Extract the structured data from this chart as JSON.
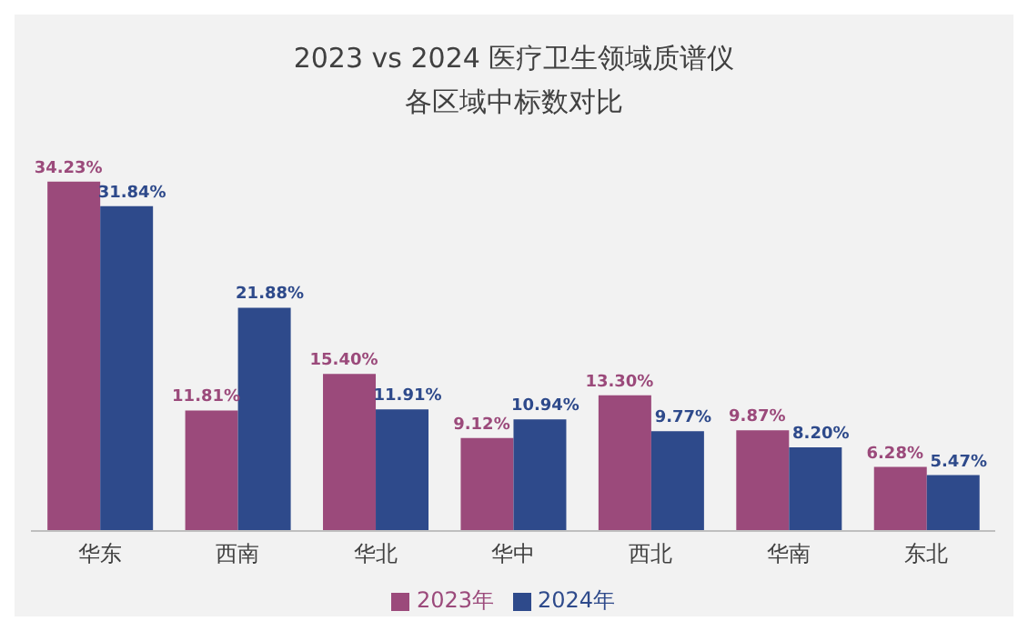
{
  "chart_data": {
    "type": "bar",
    "title": "2023 vs 2024 医疗卫生领域质谱仪",
    "subtitle": "各区域中标数对比",
    "categories": [
      "华东",
      "西南",
      "华北",
      "华中",
      "西北",
      "华南",
      "东北"
    ],
    "series": [
      {
        "name": "2023年",
        "color": "#9b4a7b",
        "values": [
          34.23,
          11.81,
          15.4,
          9.12,
          13.3,
          9.87,
          6.28
        ],
        "value_labels": [
          "34.23%",
          "11.81%",
          "15.40%",
          "9.12%",
          "13.30%",
          "9.87%",
          "6.28%"
        ]
      },
      {
        "name": "2024年",
        "color": "#2e4a8b",
        "values": [
          31.84,
          21.88,
          11.91,
          10.94,
          9.77,
          8.2,
          5.47
        ],
        "value_labels": [
          "31.84%",
          "21.88%",
          "11.91%",
          "10.94%",
          "9.77%",
          "8.20%",
          "5.47%"
        ]
      }
    ],
    "tick_labels": "x",
    "legend": "bottom"
  }
}
